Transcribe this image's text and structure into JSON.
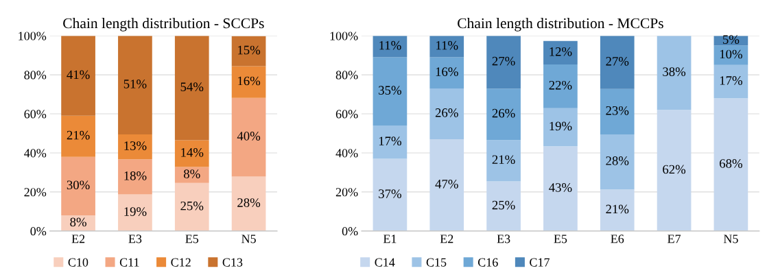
{
  "chart_data": [
    {
      "type": "bar",
      "stacked": true,
      "title": "Chain length distribution - SCCPs",
      "categories": [
        "E2",
        "E3",
        "E5",
        "N5"
      ],
      "ylim": [
        0,
        100
      ],
      "yticks": [
        {
          "value": 0,
          "label": "0%"
        },
        {
          "value": 20,
          "label": "20%"
        },
        {
          "value": 40,
          "label": "40%"
        },
        {
          "value": 60,
          "label": "60%"
        },
        {
          "value": 80,
          "label": "80%"
        },
        {
          "value": 100,
          "label": "100%"
        }
      ],
      "grid": "y",
      "legend": "bottom",
      "series": [
        {
          "name": "C10",
          "color": "#f8cfbd",
          "values": [
            8,
            18.7,
            24.6,
            27.9
          ],
          "value_labels": [
            "8%",
            "19%",
            "25%",
            "28%"
          ]
        },
        {
          "name": "C11",
          "color": "#f3a783",
          "values": [
            30,
            18.0,
            8.2,
            40.3
          ],
          "value_labels": [
            "30%",
            "18%",
            "8%",
            "40%"
          ]
        },
        {
          "name": "C12",
          "color": "#eb8a38",
          "values": [
            21,
            12.8,
            13.7,
            16.2
          ],
          "value_labels": [
            "21%",
            "13%",
            "14%",
            "16%"
          ]
        },
        {
          "name": "C13",
          "color": "#c9732f",
          "values": [
            41,
            50.5,
            53.5,
            15.4
          ],
          "value_labels": [
            "41%",
            "51%",
            "54%",
            "15%"
          ]
        }
      ]
    },
    {
      "type": "bar",
      "stacked": true,
      "title": "Chain length distribution - MCCPs",
      "categories": [
        "E1",
        "E2",
        "E3",
        "E5",
        "E6",
        "E7",
        "N5"
      ],
      "ylim": [
        0,
        100
      ],
      "yticks": [
        {
          "value": 0,
          "label": "0%"
        },
        {
          "value": 20,
          "label": "20%"
        },
        {
          "value": 40,
          "label": "40%"
        },
        {
          "value": 60,
          "label": "60%"
        },
        {
          "value": 80,
          "label": "80%"
        },
        {
          "value": 100,
          "label": "100%"
        }
      ],
      "grid": "y",
      "legend": "bottom",
      "series": [
        {
          "name": "C14",
          "color": "#c5d7ee",
          "values": [
            37,
            47,
            25.4,
            43.4,
            21.3,
            62,
            68
          ],
          "value_labels": [
            "37%",
            "47%",
            "25%",
            "43%",
            "21%",
            "62%",
            "68%"
          ]
        },
        {
          "name": "C15",
          "color": "#9dc3e6",
          "values": [
            17,
            26,
            21.2,
            19.5,
            28.2,
            38,
            17
          ],
          "value_labels": [
            "17%",
            "26%",
            "21%",
            "19%",
            "28%",
            "38%",
            "17%"
          ]
        },
        {
          "name": "C16",
          "color": "#6fa8d6",
          "values": [
            35,
            16,
            26.3,
            22.4,
            23.2,
            null,
            10
          ],
          "value_labels": [
            "35%",
            "16%",
            "26%",
            "22%",
            "23%",
            null,
            "10%"
          ]
        },
        {
          "name": "C17",
          "color": "#4f88bb",
          "values": [
            11,
            11,
            27.1,
            12,
            27.3,
            null,
            5
          ],
          "value_labels": [
            "11%",
            "11%",
            "27%",
            "12%",
            "27%",
            null,
            "5%"
          ]
        }
      ]
    }
  ]
}
